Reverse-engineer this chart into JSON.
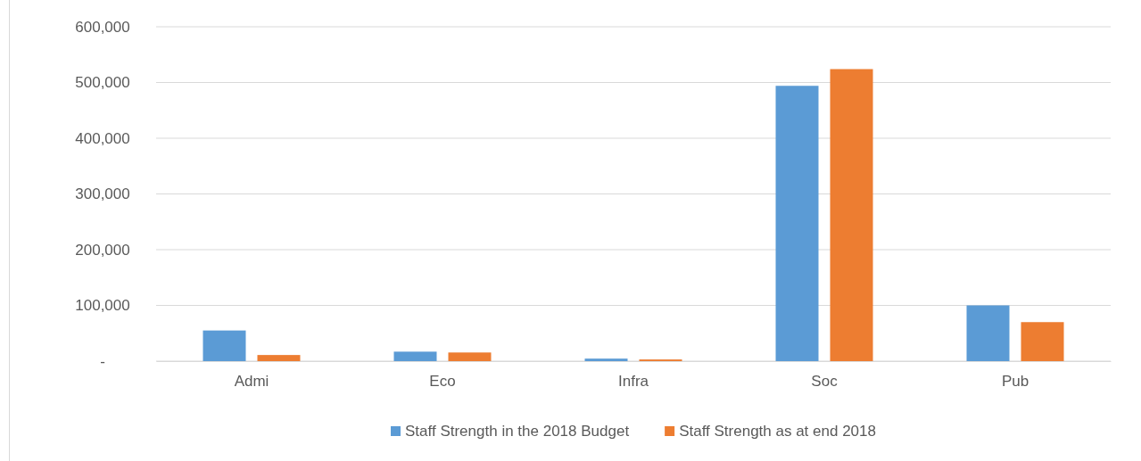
{
  "chart_data": {
    "type": "bar",
    "categories": [
      "Admi",
      "Eco",
      "Infra",
      "Soc",
      "Pub"
    ],
    "series": [
      {
        "name": "Staff Strength in the 2018 Budget",
        "color": "#5b9bd5",
        "values": [
          55000,
          17000,
          4500,
          494000,
          100000
        ]
      },
      {
        "name": "Staff Strength as at end 2018",
        "color": "#ed7d31",
        "values": [
          11000,
          15500,
          3000,
          524000,
          70000
        ]
      }
    ],
    "ylim": [
      0,
      600000
    ],
    "yticks": [
      {
        "value": 0,
        "label": "-"
      },
      {
        "value": 100000,
        "label": "100,000"
      },
      {
        "value": 200000,
        "label": "200,000"
      },
      {
        "value": 300000,
        "label": "300,000"
      },
      {
        "value": 400000,
        "label": "400,000"
      },
      {
        "value": 500000,
        "label": "500,000"
      },
      {
        "value": 600000,
        "label": "600,000"
      }
    ],
    "grid": "y",
    "legend": "bottom"
  }
}
